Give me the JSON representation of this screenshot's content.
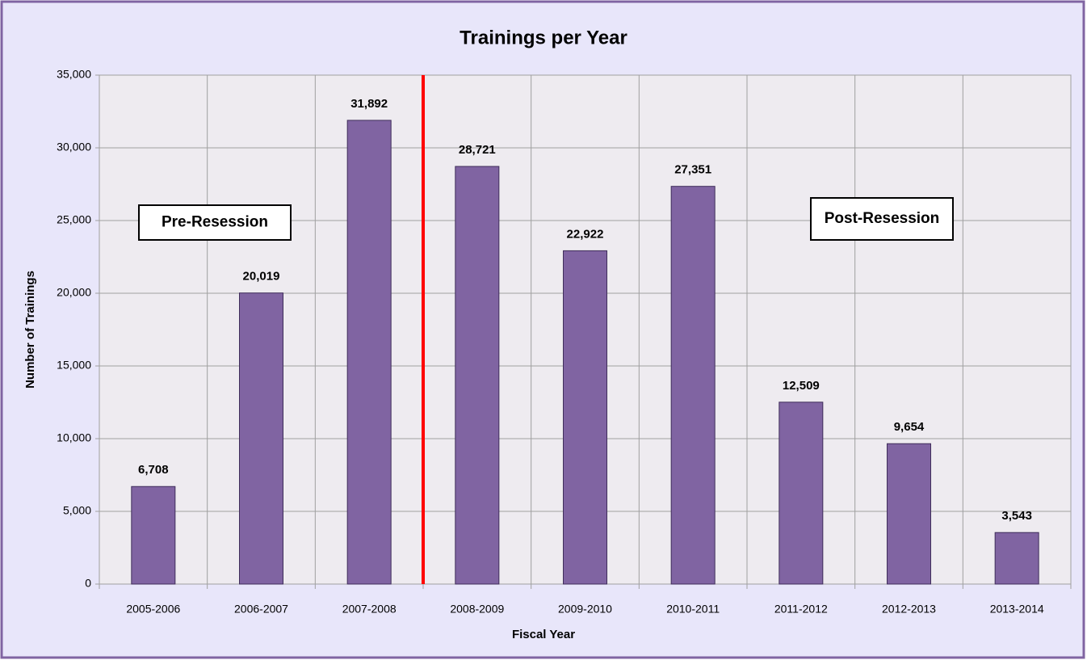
{
  "chart_data": {
    "type": "bar",
    "title": "Trainings per Year",
    "x_label": "Fiscal Year",
    "y_label": "Number of Trainings",
    "categories": [
      "2005-2006",
      "2006-2007",
      "2007-2008",
      "2008-2009",
      "2009-2010",
      "2010-2011",
      "2011-2012",
      "2012-2013",
      "2013-2014"
    ],
    "values": [
      6708,
      20019,
      31892,
      28721,
      22922,
      27351,
      12509,
      9654,
      3543
    ],
    "value_labels": [
      "6,708",
      "20,019",
      "31,892",
      "28,721",
      "22,922",
      "27,351",
      "12,509",
      "9,654",
      "3,543"
    ],
    "color": "#8064a2",
    "ylim": [
      0,
      35000
    ],
    "yticks": [
      0,
      {
        "value": 5000,
        "label": "5,000"
      },
      {
        "value": 10000,
        "label": "10,000"
      },
      {
        "value": 15000,
        "label": "15,000"
      },
      {
        "value": 20000,
        "label": "20,000"
      },
      {
        "value": 25000,
        "label": "25,000"
      },
      {
        "value": 30000,
        "label": "30,000"
      },
      {
        "value": 35000,
        "label": "35,000"
      }
    ],
    "grid": true,
    "annotations": [
      "Pre-Resession",
      "Post-Resession"
    ]
  }
}
